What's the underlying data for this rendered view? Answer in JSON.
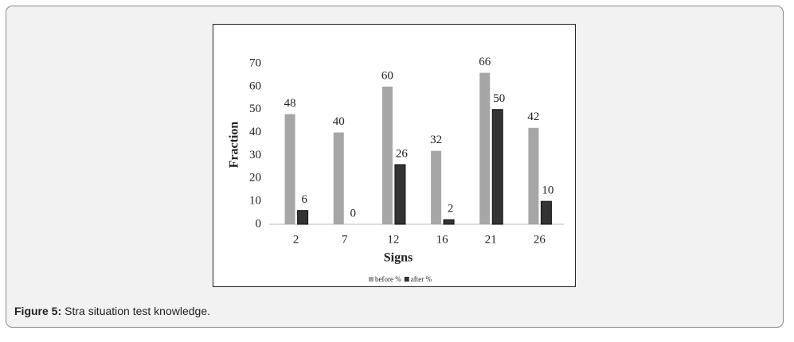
{
  "chart_data": {
    "type": "bar",
    "categories": [
      "2",
      "7",
      "12",
      "16",
      "21",
      "26"
    ],
    "series": [
      {
        "name": "before %",
        "color": "#a6a6a6",
        "values": [
          48,
          40,
          60,
          32,
          66,
          42
        ]
      },
      {
        "name": "after %",
        "color": "#333333",
        "values": [
          6,
          0,
          26,
          2,
          50,
          10
        ]
      }
    ],
    "x_label": "Signs",
    "y_label": "Fraction",
    "ylim": [
      0,
      70
    ],
    "yticks": [
      0,
      10,
      20,
      30,
      40,
      50,
      60,
      70
    ],
    "legend": "bottom"
  },
  "caption": {
    "label": "Figure 5:",
    "text": "Stra situation test knowledge."
  }
}
